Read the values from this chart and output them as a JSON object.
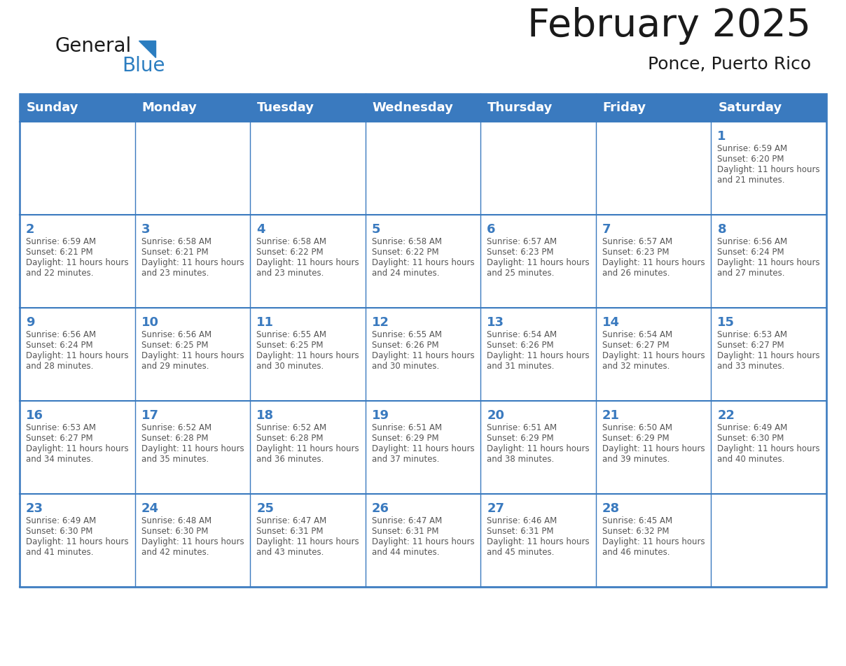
{
  "title": "February 2025",
  "subtitle": "Ponce, Puerto Rico",
  "days_of_week": [
    "Sunday",
    "Monday",
    "Tuesday",
    "Wednesday",
    "Thursday",
    "Friday",
    "Saturday"
  ],
  "header_bg_color": "#3a7abf",
  "header_text_color": "#ffffff",
  "grid_color": "#3a7abf",
  "day_number_color": "#3a7abf",
  "info_text_color": "#555555",
  "title_color": "#1a1a1a",
  "logo_general_color": "#1a1a1a",
  "logo_blue_color": "#2b7dc0",
  "calendar_data": [
    [
      null,
      null,
      null,
      null,
      null,
      null,
      {
        "day": 1,
        "sunrise": "6:59 AM",
        "sunset": "6:20 PM",
        "daylight": "11 hours and 21 minutes."
      }
    ],
    [
      {
        "day": 2,
        "sunrise": "6:59 AM",
        "sunset": "6:21 PM",
        "daylight": "11 hours and 22 minutes."
      },
      {
        "day": 3,
        "sunrise": "6:58 AM",
        "sunset": "6:21 PM",
        "daylight": "11 hours and 23 minutes."
      },
      {
        "day": 4,
        "sunrise": "6:58 AM",
        "sunset": "6:22 PM",
        "daylight": "11 hours and 23 minutes."
      },
      {
        "day": 5,
        "sunrise": "6:58 AM",
        "sunset": "6:22 PM",
        "daylight": "11 hours and 24 minutes."
      },
      {
        "day": 6,
        "sunrise": "6:57 AM",
        "sunset": "6:23 PM",
        "daylight": "11 hours and 25 minutes."
      },
      {
        "day": 7,
        "sunrise": "6:57 AM",
        "sunset": "6:23 PM",
        "daylight": "11 hours and 26 minutes."
      },
      {
        "day": 8,
        "sunrise": "6:56 AM",
        "sunset": "6:24 PM",
        "daylight": "11 hours and 27 minutes."
      }
    ],
    [
      {
        "day": 9,
        "sunrise": "6:56 AM",
        "sunset": "6:24 PM",
        "daylight": "11 hours and 28 minutes."
      },
      {
        "day": 10,
        "sunrise": "6:56 AM",
        "sunset": "6:25 PM",
        "daylight": "11 hours and 29 minutes."
      },
      {
        "day": 11,
        "sunrise": "6:55 AM",
        "sunset": "6:25 PM",
        "daylight": "11 hours and 30 minutes."
      },
      {
        "day": 12,
        "sunrise": "6:55 AM",
        "sunset": "6:26 PM",
        "daylight": "11 hours and 30 minutes."
      },
      {
        "day": 13,
        "sunrise": "6:54 AM",
        "sunset": "6:26 PM",
        "daylight": "11 hours and 31 minutes."
      },
      {
        "day": 14,
        "sunrise": "6:54 AM",
        "sunset": "6:27 PM",
        "daylight": "11 hours and 32 minutes."
      },
      {
        "day": 15,
        "sunrise": "6:53 AM",
        "sunset": "6:27 PM",
        "daylight": "11 hours and 33 minutes."
      }
    ],
    [
      {
        "day": 16,
        "sunrise": "6:53 AM",
        "sunset": "6:27 PM",
        "daylight": "11 hours and 34 minutes."
      },
      {
        "day": 17,
        "sunrise": "6:52 AM",
        "sunset": "6:28 PM",
        "daylight": "11 hours and 35 minutes."
      },
      {
        "day": 18,
        "sunrise": "6:52 AM",
        "sunset": "6:28 PM",
        "daylight": "11 hours and 36 minutes."
      },
      {
        "day": 19,
        "sunrise": "6:51 AM",
        "sunset": "6:29 PM",
        "daylight": "11 hours and 37 minutes."
      },
      {
        "day": 20,
        "sunrise": "6:51 AM",
        "sunset": "6:29 PM",
        "daylight": "11 hours and 38 minutes."
      },
      {
        "day": 21,
        "sunrise": "6:50 AM",
        "sunset": "6:29 PM",
        "daylight": "11 hours and 39 minutes."
      },
      {
        "day": 22,
        "sunrise": "6:49 AM",
        "sunset": "6:30 PM",
        "daylight": "11 hours and 40 minutes."
      }
    ],
    [
      {
        "day": 23,
        "sunrise": "6:49 AM",
        "sunset": "6:30 PM",
        "daylight": "11 hours and 41 minutes."
      },
      {
        "day": 24,
        "sunrise": "6:48 AM",
        "sunset": "6:30 PM",
        "daylight": "11 hours and 42 minutes."
      },
      {
        "day": 25,
        "sunrise": "6:47 AM",
        "sunset": "6:31 PM",
        "daylight": "11 hours and 43 minutes."
      },
      {
        "day": 26,
        "sunrise": "6:47 AM",
        "sunset": "6:31 PM",
        "daylight": "11 hours and 44 minutes."
      },
      {
        "day": 27,
        "sunrise": "6:46 AM",
        "sunset": "6:31 PM",
        "daylight": "11 hours and 45 minutes."
      },
      {
        "day": 28,
        "sunrise": "6:45 AM",
        "sunset": "6:32 PM",
        "daylight": "11 hours and 46 minutes."
      },
      null
    ]
  ]
}
